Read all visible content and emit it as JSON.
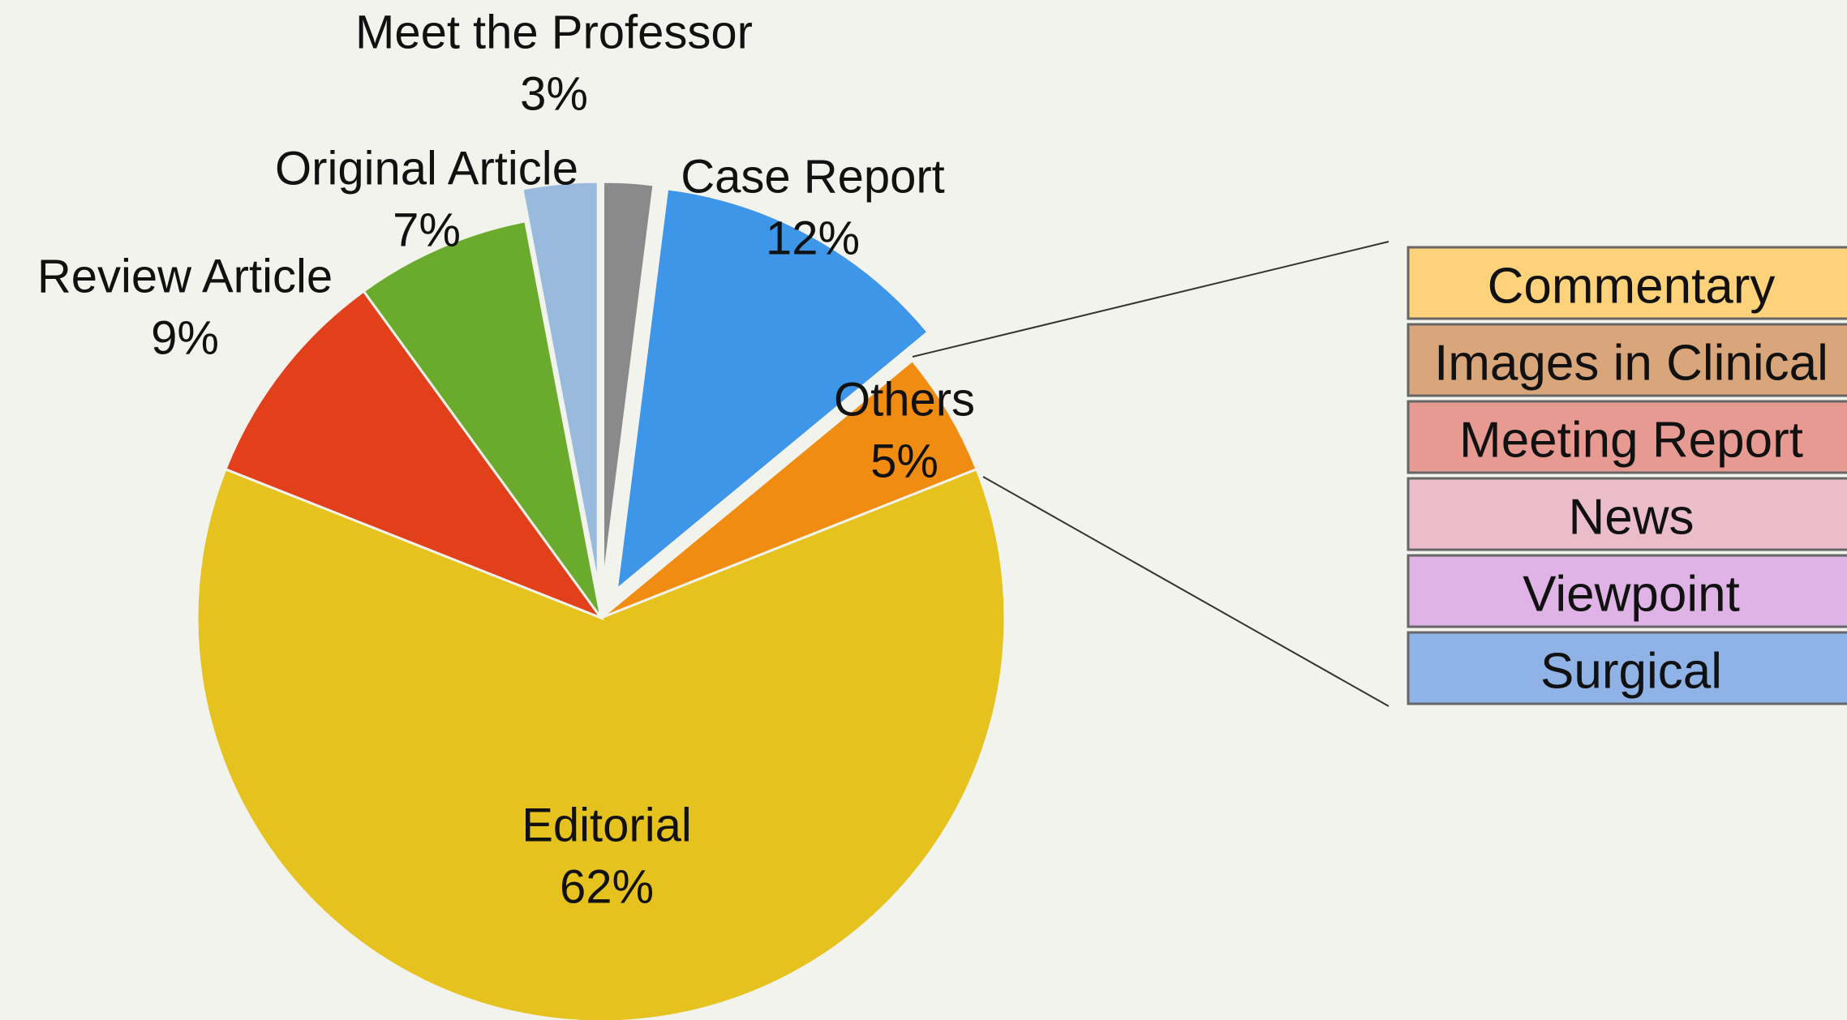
{
  "chart_data": {
    "type": "pie",
    "categories": [
      null,
      "Case Report",
      "Others",
      "Editorial",
      "Review Article",
      "Original Article",
      "Meet the Professor"
    ],
    "values": [
      2,
      12,
      5,
      62,
      9,
      7,
      3
    ],
    "value_labels": [
      null,
      "12%",
      "5%",
      "62%",
      "9%",
      "7%",
      "3%"
    ],
    "colors": [
      "#8a8a8a",
      "#3d96e8",
      "#f08c12",
      "#e6c21e",
      "#e2401a",
      "#6aaa2c",
      "#9abadd"
    ],
    "explode": [
      true,
      true,
      false,
      false,
      false,
      false,
      true
    ],
    "breakout": {
      "items": [
        "Commentary",
        "Images in Clinical",
        "Meeting Report",
        "News",
        "Viewpoint",
        "Surgical"
      ],
      "colors": [
        "#fdd27a",
        "#d9a57a",
        "#e79a92",
        "#ebbdcb",
        "#dfb3e6",
        "#8fb3e6"
      ]
    }
  }
}
